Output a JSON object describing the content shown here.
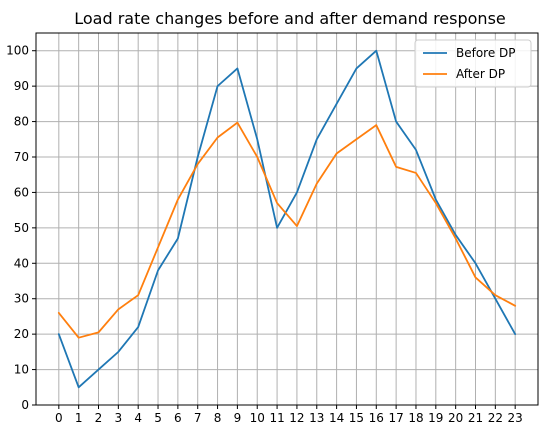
{
  "chart_data": {
    "type": "line",
    "title": "Load rate changes before and after demand response",
    "xlabel": "",
    "ylabel": "",
    "x": [
      0,
      1,
      2,
      3,
      4,
      5,
      6,
      7,
      8,
      9,
      10,
      11,
      12,
      13,
      14,
      15,
      16,
      17,
      18,
      19,
      20,
      21,
      22,
      23
    ],
    "x_ticks": [
      "0",
      "1",
      "2",
      "3",
      "4",
      "5",
      "6",
      "7",
      "8",
      "9",
      "10",
      "11",
      "12",
      "13",
      "14",
      "15",
      "16",
      "17",
      "18",
      "19",
      "20",
      "21",
      "22",
      "23"
    ],
    "y_ticks": [
      "0",
      "10",
      "20",
      "30",
      "40",
      "50",
      "60",
      "70",
      "80",
      "90",
      "100"
    ],
    "xlim": [
      -1.15,
      24.15
    ],
    "ylim": [
      0,
      105
    ],
    "grid": true,
    "legend_position": "top-right",
    "series": [
      {
        "name": "Before DP",
        "color": "#1f77b4",
        "values": [
          20,
          5,
          10,
          15,
          22,
          38,
          47,
          70,
          90,
          95,
          75,
          50,
          60,
          75,
          85,
          95,
          100,
          80,
          72,
          58,
          48,
          40,
          30,
          20
        ]
      },
      {
        "name": "After DP",
        "color": "#ff7f0e",
        "values": [
          26,
          19,
          20.5,
          27,
          31,
          44.5,
          58,
          68,
          75.5,
          79.7,
          70,
          57,
          50.5,
          62.5,
          71,
          75,
          79,
          67.2,
          65.5,
          57,
          47,
          36,
          31,
          28
        ]
      }
    ]
  }
}
